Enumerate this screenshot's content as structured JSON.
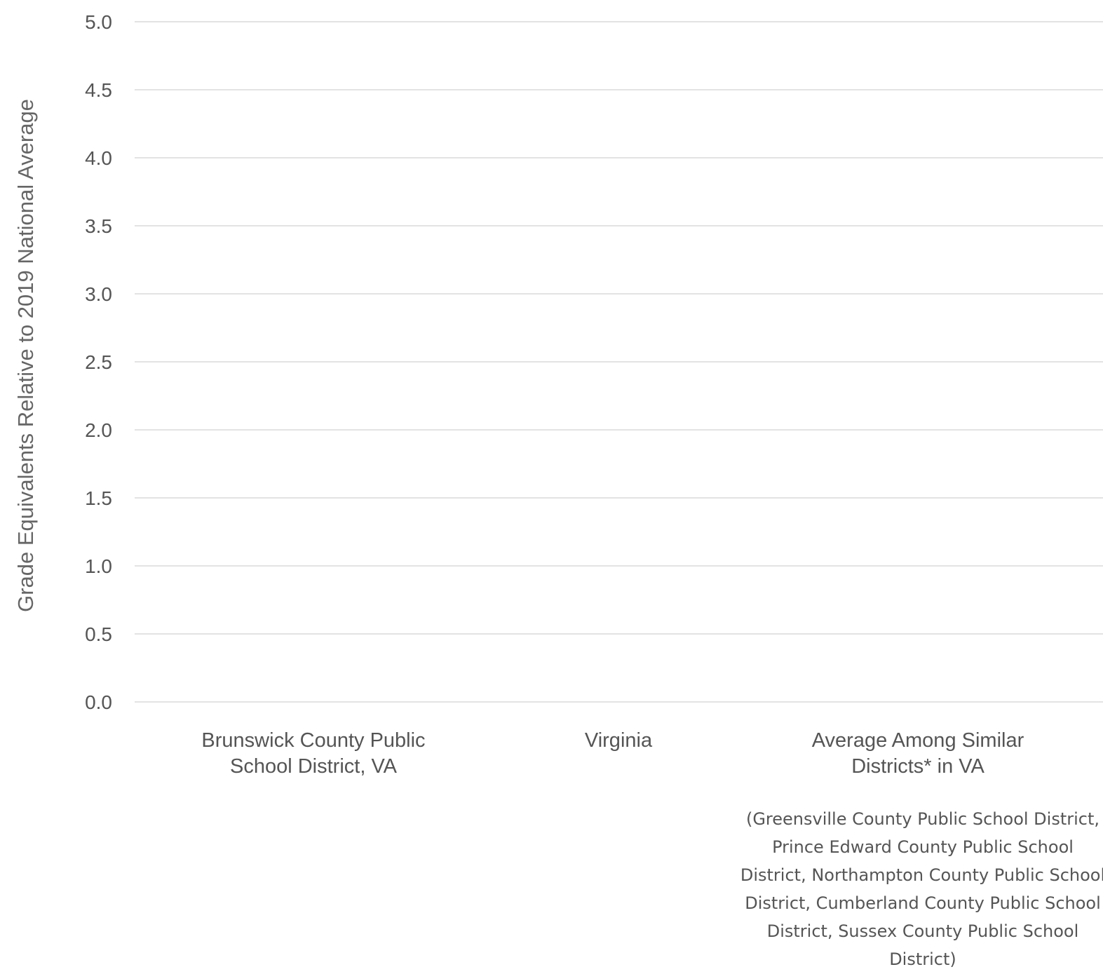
{
  "chart_data": {
    "type": "bar",
    "title": "",
    "xlabel": "",
    "ylabel": "Grade Equivalents Relative to 2019 National Average",
    "ylim": [
      0,
      5
    ],
    "yticks": [
      "0.0",
      "0.5",
      "1.0",
      "1.5",
      "2.0",
      "2.5",
      "3.0",
      "3.5",
      "4.0",
      "4.5",
      "5.0"
    ],
    "grid": true,
    "categories": [
      [
        "Brunswick County Public",
        "School District, VA"
      ],
      [
        "Virginia"
      ],
      [
        "Average Among Similar",
        "Districts* in VA"
      ]
    ],
    "category_note": [
      "(Greensville County Public School District,",
      "Prince Edward County Public School",
      "District, Northampton County Public School",
      "District, Cumberland County Public School",
      "District, Sussex County Public School",
      "District)"
    ],
    "series": [
      {
        "values": [
          null,
          null,
          null
        ]
      }
    ]
  },
  "colors": {
    "grid": "#e3e3e3",
    "text": "#555555",
    "axis_title": "#666666"
  }
}
